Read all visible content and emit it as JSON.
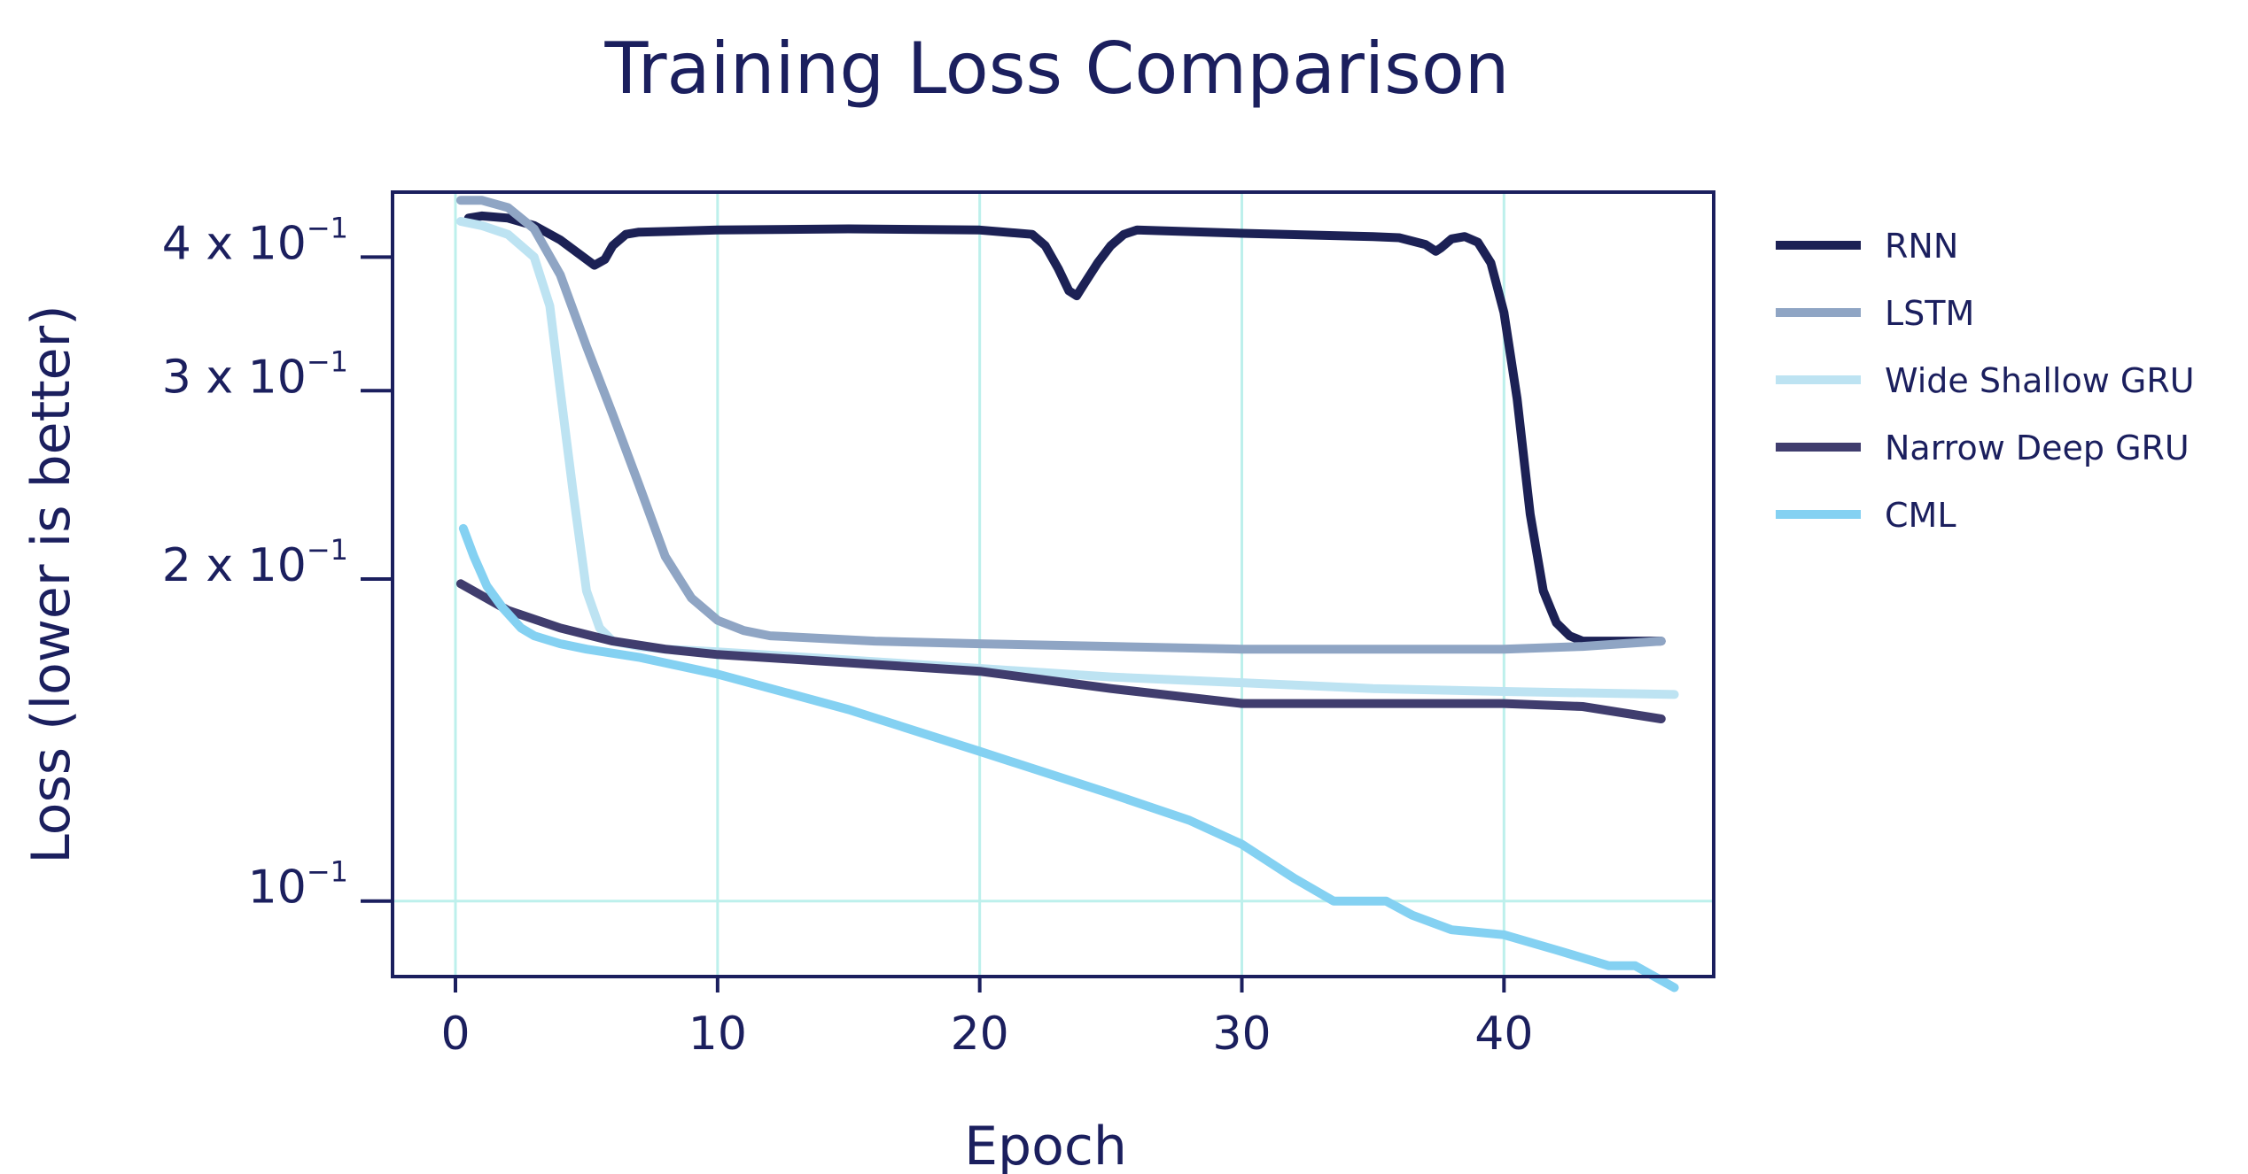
{
  "chart_data": {
    "type": "line",
    "title": "Training Loss Comparison",
    "xlabel": "Epoch",
    "ylabel": "Loss (lower is better)",
    "xlim": [
      -2.4,
      48
    ],
    "ylim": [
      0.085,
      0.46
    ],
    "yscale": "log",
    "grid": true,
    "legend_position": "outside-right",
    "x_ticks": [
      0,
      10,
      20,
      30,
      40
    ],
    "x_tick_labels": [
      "0",
      "10",
      "20",
      "30",
      "40"
    ],
    "y_ticks": [
      0.1,
      0.2,
      0.3,
      0.4
    ],
    "y_tick_labels": [
      {
        "base": "10",
        "exp": "−1"
      },
      {
        "base": "2 x 10",
        "exp": "−1"
      },
      {
        "base": "3 x 10",
        "exp": "−1"
      },
      {
        "base": "4 x 10",
        "exp": "−1"
      }
    ],
    "series": [
      {
        "name": "RNN",
        "color": "#1c2155",
        "x": [
          0.5,
          1,
          2,
          3,
          4,
          5,
          5.3,
          5.7,
          6,
          6.5,
          7,
          10,
          15,
          20,
          22,
          22.5,
          23,
          23.4,
          23.7,
          24,
          24.5,
          25,
          25.5,
          26,
          30,
          35,
          36,
          37,
          37.4,
          37.6,
          38,
          38.5,
          39,
          39.5,
          40,
          40.5,
          41,
          41.5,
          42,
          42.5,
          43,
          44,
          45,
          46
        ],
        "y": [
          0.435,
          0.437,
          0.435,
          0.428,
          0.415,
          0.398,
          0.393,
          0.398,
          0.41,
          0.42,
          0.422,
          0.424,
          0.425,
          0.424,
          0.42,
          0.41,
          0.39,
          0.372,
          0.368,
          0.378,
          0.395,
          0.41,
          0.42,
          0.424,
          0.421,
          0.418,
          0.417,
          0.411,
          0.405,
          0.408,
          0.416,
          0.418,
          0.413,
          0.395,
          0.355,
          0.295,
          0.23,
          0.195,
          0.182,
          0.177,
          0.175,
          0.175,
          0.175,
          0.175
        ]
      },
      {
        "name": "LSTM",
        "color": "#8fa5c4",
        "x": [
          0.2,
          1,
          2,
          3,
          4,
          5,
          6,
          7,
          8,
          9,
          10,
          11,
          12,
          14,
          16,
          20,
          25,
          30,
          35,
          40,
          43,
          46
        ],
        "y": [
          0.452,
          0.452,
          0.445,
          0.425,
          0.385,
          0.33,
          0.285,
          0.245,
          0.21,
          0.192,
          0.183,
          0.179,
          0.177,
          0.176,
          0.175,
          0.174,
          0.173,
          0.172,
          0.172,
          0.172,
          0.173,
          0.175
        ]
      },
      {
        "name": "Wide Shallow GRU",
        "color": "#bde3f2",
        "x": [
          0.2,
          1,
          2,
          3,
          3.6,
          4,
          4.5,
          5,
          5.5,
          6,
          7,
          8,
          10,
          15,
          20,
          25,
          30,
          35,
          40,
          46.5
        ],
        "y": [
          0.432,
          0.428,
          0.42,
          0.4,
          0.36,
          0.3,
          0.24,
          0.195,
          0.18,
          0.175,
          0.173,
          0.172,
          0.171,
          0.168,
          0.165,
          0.162,
          0.16,
          0.158,
          0.157,
          0.156
        ]
      },
      {
        "name": "Narrow Deep GRU",
        "color": "#403d6e",
        "x": [
          0.2,
          2,
          4,
          6,
          8,
          10,
          15,
          20,
          25,
          30,
          35,
          40,
          43,
          46
        ],
        "y": [
          0.198,
          0.187,
          0.18,
          0.175,
          0.172,
          0.17,
          0.167,
          0.164,
          0.158,
          0.153,
          0.153,
          0.153,
          0.152,
          0.148
        ]
      },
      {
        "name": "CML",
        "color": "#84d1f2",
        "x": [
          0.3,
          0.7,
          1.2,
          1.8,
          2.5,
          3,
          4,
          5,
          7,
          10,
          15,
          20,
          25,
          28,
          30,
          32,
          33.5,
          34.5,
          35.5,
          36.5,
          38,
          40,
          42,
          44,
          45,
          46.5
        ],
        "y": [
          0.223,
          0.21,
          0.197,
          0.188,
          0.18,
          0.177,
          0.174,
          0.172,
          0.169,
          0.163,
          0.151,
          0.138,
          0.126,
          0.119,
          0.113,
          0.105,
          0.1,
          0.1,
          0.1,
          0.097,
          0.094,
          0.093,
          0.09,
          0.087,
          0.087,
          0.083
        ]
      }
    ]
  }
}
